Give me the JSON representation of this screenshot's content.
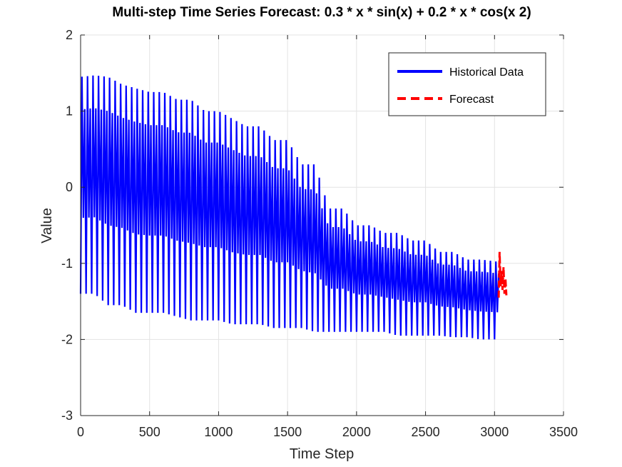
{
  "chart_data": {
    "type": "line",
    "title": "Multi-step Time Series Forecast: 0.3 * x * sin(x) + 0.2 * x * cos(x  2)",
    "xlabel": "Time Step",
    "ylabel": "Value",
    "xlim": [
      0,
      3500
    ],
    "ylim": [
      -3,
      2
    ],
    "xticks": [
      0,
      500,
      1000,
      1500,
      2000,
      2500,
      3000,
      3500
    ],
    "yticks": [
      -3,
      -2,
      -1,
      0,
      1,
      2
    ],
    "xtick_labels": [
      "0",
      "500",
      "1000",
      "1500",
      "2000",
      "2500",
      "3000",
      "3500"
    ],
    "ytick_labels": [
      "-3",
      "-2",
      "-1",
      "0",
      "1",
      "2"
    ],
    "grid": true,
    "legend_position": "top-right",
    "series": [
      {
        "name": "Historical Data",
        "color": "#0000ff",
        "style": "solid",
        "x_range": [
          0,
          3030
        ],
        "period": 20,
        "envelope": {
          "x": [
            0,
            100,
            200,
            300,
            400,
            500,
            600,
            700,
            800,
            900,
            1000,
            1100,
            1200,
            1300,
            1400,
            1500,
            1600,
            1700,
            1800,
            1900,
            2000,
            2100,
            2200,
            2300,
            2400,
            2500,
            2600,
            2700,
            2800,
            2900,
            3030
          ],
          "upper": [
            1.45,
            1.47,
            1.45,
            1.35,
            1.3,
            1.25,
            1.25,
            1.15,
            1.15,
            1.0,
            1.0,
            0.9,
            0.8,
            0.8,
            0.62,
            0.62,
            0.3,
            0.3,
            -0.28,
            -0.28,
            -0.5,
            -0.5,
            -0.6,
            -0.6,
            -0.7,
            -0.7,
            -0.85,
            -0.85,
            -0.95,
            -0.95,
            -0.98
          ],
          "lower": [
            -1.4,
            -1.4,
            -1.55,
            -1.55,
            -1.65,
            -1.65,
            -1.65,
            -1.7,
            -1.75,
            -1.75,
            -1.75,
            -1.8,
            -1.8,
            -1.8,
            -1.85,
            -1.85,
            -1.85,
            -1.9,
            -1.9,
            -1.9,
            -1.9,
            -1.9,
            -1.9,
            -1.95,
            -1.95,
            -1.95,
            -1.95,
            -1.97,
            -1.97,
            -2.0,
            -2.0
          ]
        }
      },
      {
        "name": "Forecast",
        "color": "#ff0000",
        "style": "dashed",
        "x": [
          3030,
          3037,
          3044,
          3051,
          3058,
          3065,
          3072,
          3079,
          3086
        ],
        "y": [
          -1.45,
          -0.85,
          -1.3,
          -1.1,
          -1.35,
          -1.05,
          -1.4,
          -1.2,
          -1.42
        ]
      }
    ]
  }
}
